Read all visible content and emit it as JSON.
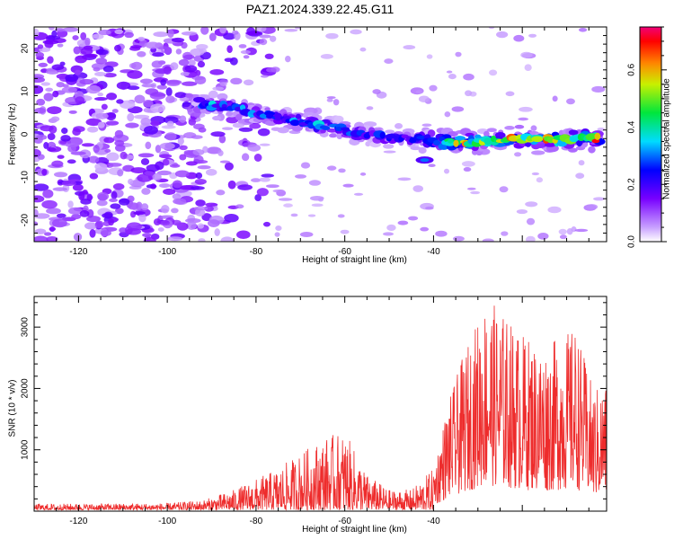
{
  "title": "PAZ1.2024.339.22.45.G11",
  "chart_data": [
    {
      "type": "heatmap",
      "name": "spectrogram",
      "xlabel": "Height of straight line (km)",
      "ylabel": "Frequency (Hz)",
      "xlim": [
        -130,
        -1
      ],
      "ylim": [
        -25,
        25
      ],
      "xticks": [
        -120,
        -100,
        -80,
        -60,
        -40
      ],
      "yticks": [
        -20,
        -10,
        0,
        10,
        20
      ],
      "colorbar": {
        "label": "Normalized spectral amplitude",
        "range": [
          0.0,
          0.75
        ],
        "ticks": [
          "0.0",
          "0.2",
          "0.4",
          "0.6"
        ],
        "colormap": "rainbow (white-violet-blue-cyan-green-yellow-red-magenta)"
      },
      "features": {
        "noise_region_x": [
          -130,
          -92
        ],
        "ridge": [
          {
            "x": -93,
            "y": 7,
            "amp": 0.4
          },
          {
            "x": -85,
            "y": 6,
            "amp": 0.35
          },
          {
            "x": -75,
            "y": 4,
            "amp": 0.35
          },
          {
            "x": -65,
            "y": 2,
            "amp": 0.4
          },
          {
            "x": -55,
            "y": 0,
            "amp": 0.3
          },
          {
            "x": -45,
            "y": -1,
            "amp": 0.3
          },
          {
            "x": -35,
            "y": -2,
            "amp": 0.65
          },
          {
            "x": -20,
            "y": -1,
            "amp": 0.7
          },
          {
            "x": -2,
            "y": -1,
            "amp": 0.75
          }
        ]
      }
    },
    {
      "type": "line",
      "name": "snr",
      "xlabel": "Height of straight line (km)",
      "ylabel": "SNR (10 * v/v)",
      "xlim": [
        -130,
        -1
      ],
      "ylim": [
        0,
        3500
      ],
      "xticks": [
        -120,
        -100,
        -80,
        -60,
        -40
      ],
      "yticks": [
        1000,
        2000,
        3000
      ],
      "series_color": "#ee2c2c",
      "envelope": [
        {
          "x": -130,
          "y": 120
        },
        {
          "x": -100,
          "y": 130
        },
        {
          "x": -92,
          "y": 180
        },
        {
          "x": -85,
          "y": 350
        },
        {
          "x": -75,
          "y": 700
        },
        {
          "x": -65,
          "y": 1200
        },
        {
          "x": -60,
          "y": 1300
        },
        {
          "x": -55,
          "y": 600
        },
        {
          "x": -50,
          "y": 350
        },
        {
          "x": -45,
          "y": 350
        },
        {
          "x": -40,
          "y": 700
        },
        {
          "x": -37,
          "y": 1700
        },
        {
          "x": -33,
          "y": 2600
        },
        {
          "x": -28,
          "y": 3500
        },
        {
          "x": -20,
          "y": 2900
        },
        {
          "x": -15,
          "y": 2700
        },
        {
          "x": -8,
          "y": 3000
        },
        {
          "x": -4,
          "y": 2000
        },
        {
          "x": -1,
          "y": 2100
        }
      ]
    }
  ]
}
